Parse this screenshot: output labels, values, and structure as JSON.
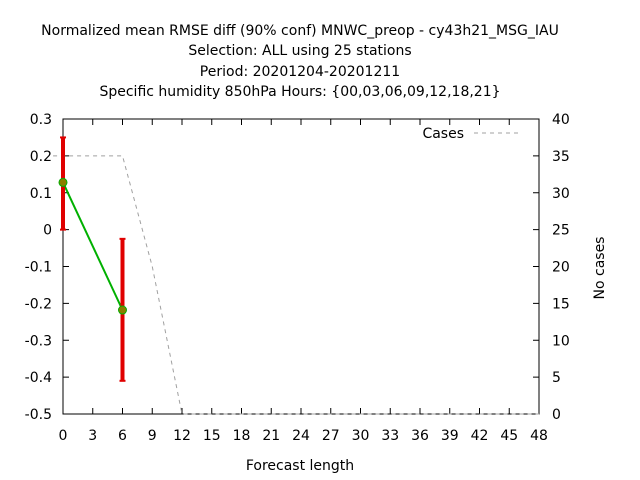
{
  "chart_data": {
    "type": "line",
    "title_lines": [
      "Normalized mean RMSE diff (90% conf) MNWC_preop - cy43h21_MSG_IAU",
      "Selection: ALL using    25 stations",
      "Period: 20201204-20201211",
      "Specific humidity 850hPa   Hours: {00,03,06,09,12,18,21}"
    ],
    "xlabel": "Forecast length",
    "ylabel": "",
    "y2label": "No cases",
    "xlim": [
      0,
      48
    ],
    "ylim": [
      -0.5,
      0.3
    ],
    "y2lim": [
      0,
      40
    ],
    "x_ticks": [
      "0",
      "3",
      "6",
      "9",
      "12",
      "15",
      "18",
      "21",
      "24",
      "27",
      "30",
      "33",
      "36",
      "39",
      "42",
      "45",
      "48"
    ],
    "y_ticks": [
      "0.3",
      "0.2",
      "0.1",
      "0",
      "-0.1",
      "-0.2",
      "-0.3",
      "-0.4",
      "-0.5"
    ],
    "y2_ticks": [
      "40",
      "35",
      "30",
      "25",
      "20",
      "15",
      "10",
      "5",
      "0"
    ],
    "legend": {
      "label": "Cases",
      "position": "top-right"
    },
    "series": [
      {
        "kind": "main",
        "axis": "y",
        "color": "#00b000",
        "marker_color": "#8b7d00",
        "x": [
          0,
          6
        ],
        "y": [
          0.128,
          -0.218
        ]
      },
      {
        "kind": "cases",
        "name": "Cases",
        "axis": "y2",
        "color": "#a0a0a0",
        "x": [
          -1,
          0,
          3,
          6,
          9,
          12,
          15,
          18,
          21,
          24,
          27,
          30,
          33,
          36,
          39,
          42,
          45,
          48
        ],
        "y": [
          35,
          35,
          35,
          35,
          20,
          0,
          0,
          0,
          0,
          0,
          0,
          0,
          0,
          0,
          0,
          0,
          0,
          0
        ]
      }
    ],
    "error_bars": {
      "color": "#e00000",
      "items": [
        {
          "x": 0,
          "low": 0.0,
          "high": 0.25
        },
        {
          "x": 6,
          "low": -0.41,
          "high": -0.025
        }
      ]
    }
  }
}
